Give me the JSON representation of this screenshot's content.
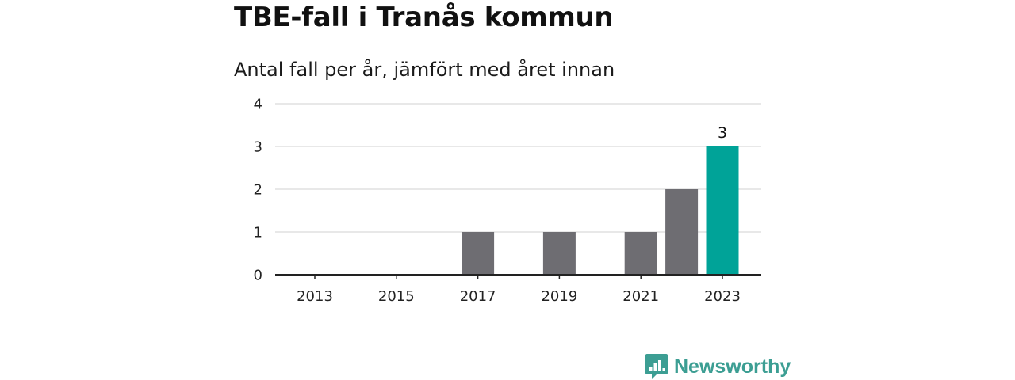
{
  "title": "TBE-fall i Tranås kommun",
  "subtitle": "Antal fall per år, jämfört med året innan",
  "brand": {
    "name": "Newsworthy",
    "logo_icon": "newsworthy-chart-logo-icon",
    "color": "#3c9e93"
  },
  "colors": {
    "bar": "#6e6d72",
    "highlight": "#00a398",
    "grid": "#d9d9d9",
    "axis": "#222222"
  },
  "chart_data": {
    "type": "bar",
    "title": "TBE-fall i Tranås kommun",
    "subtitle": "Antal fall per år, jämfört med året innan",
    "xlabel": "",
    "ylabel": "",
    "categories": [
      "2013",
      "2014",
      "2015",
      "2016",
      "2017",
      "2018",
      "2019",
      "2020",
      "2021",
      "2022",
      "2023"
    ],
    "x_tick_labels": [
      "2013",
      "2015",
      "2017",
      "2019",
      "2021",
      "2023"
    ],
    "values": [
      0,
      0,
      0,
      0,
      1,
      0,
      1,
      0,
      1,
      2,
      3
    ],
    "highlight_category": "2023",
    "data_labels": [
      {
        "category": "2023",
        "text": "3"
      }
    ],
    "ylim": [
      0,
      4
    ],
    "y_ticks": [
      0,
      1,
      2,
      3,
      4
    ],
    "grid": "horizontal",
    "legend": "none"
  }
}
